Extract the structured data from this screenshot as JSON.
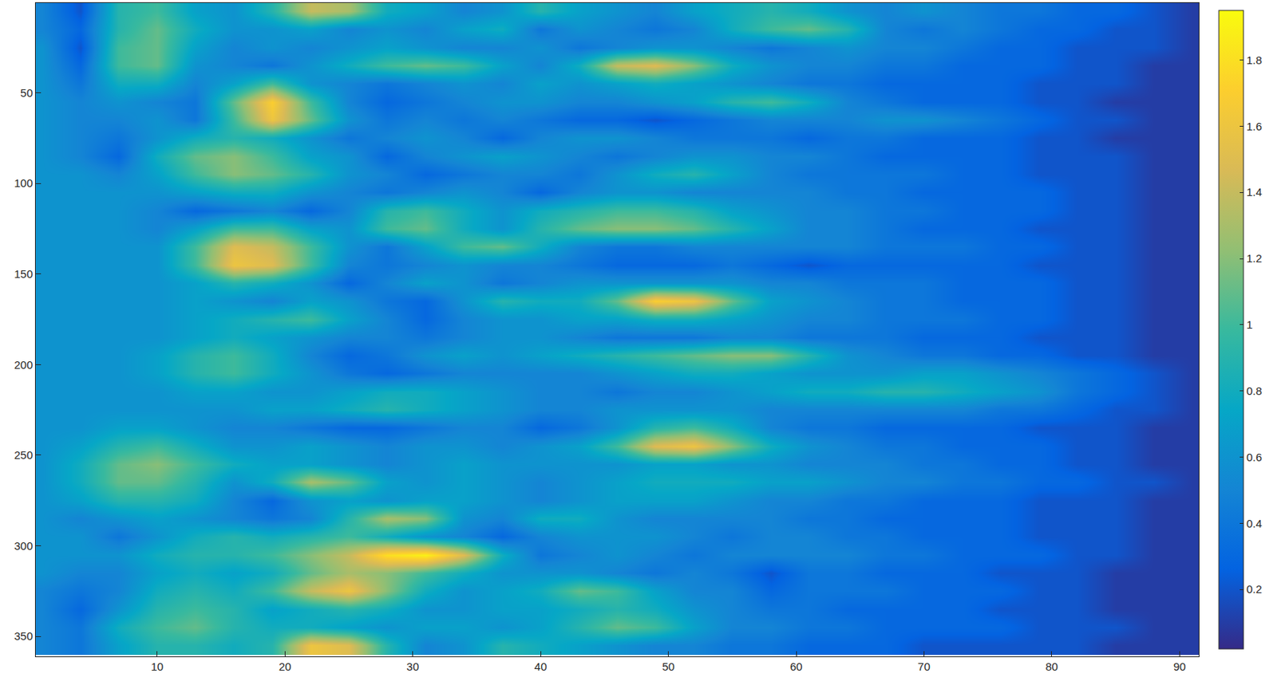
{
  "chart_data": {
    "type": "heatmap",
    "color": "parula",
    "x": [
      1,
      4,
      7,
      10,
      13,
      16,
      19,
      22,
      25,
      28,
      31,
      34,
      37,
      40,
      43,
      46,
      49,
      52,
      55,
      58,
      61,
      64,
      67,
      70,
      73,
      76,
      79,
      82,
      85,
      88,
      91
    ],
    "y": [
      5,
      15,
      25,
      35,
      45,
      55,
      65,
      75,
      85,
      95,
      105,
      115,
      125,
      135,
      145,
      155,
      165,
      175,
      185,
      195,
      205,
      215,
      225,
      235,
      245,
      255,
      265,
      275,
      285,
      295,
      305,
      315,
      325,
      335,
      345,
      355
    ],
    "cells": [
      [
        0.5,
        0.2,
        0.9,
        1.0,
        0.7,
        0.6,
        0.9,
        1.4,
        1.3,
        0.8,
        0.7,
        0.5,
        0.6,
        0.9,
        0.7,
        0.6,
        0.5,
        0.7,
        0.8,
        0.9,
        0.8,
        0.6,
        0.5,
        0.6,
        0.5,
        0.4,
        0.4,
        0.3,
        0.3,
        0.2,
        0.1
      ],
      [
        0.5,
        0.3,
        0.9,
        1.1,
        0.8,
        0.6,
        0.6,
        0.7,
        0.5,
        0.6,
        0.5,
        0.7,
        0.8,
        0.4,
        0.6,
        0.5,
        0.4,
        0.5,
        0.8,
        1.0,
        1.1,
        0.9,
        0.5,
        0.4,
        0.5,
        0.4,
        0.3,
        0.3,
        0.2,
        0.2,
        0.1
      ],
      [
        0.6,
        0.2,
        1.0,
        1.1,
        0.7,
        0.5,
        0.6,
        0.5,
        0.6,
        0.7,
        0.6,
        0.5,
        0.5,
        0.6,
        0.4,
        0.5,
        0.6,
        0.6,
        0.5,
        0.4,
        0.5,
        0.6,
        0.5,
        0.5,
        0.4,
        0.3,
        0.3,
        0.2,
        0.2,
        0.2,
        0.1
      ],
      [
        0.6,
        0.3,
        1.0,
        1.1,
        0.6,
        0.5,
        0.4,
        0.6,
        0.8,
        1.0,
        1.1,
        1.0,
        0.7,
        0.5,
        0.8,
        1.4,
        1.5,
        1.2,
        0.8,
        0.6,
        0.5,
        0.5,
        0.4,
        0.4,
        0.3,
        0.3,
        0.3,
        0.2,
        0.2,
        0.1,
        0.1
      ],
      [
        0.6,
        0.4,
        0.8,
        0.8,
        0.5,
        0.7,
        1.0,
        0.6,
        0.5,
        0.4,
        0.5,
        0.6,
        0.5,
        0.7,
        0.6,
        0.7,
        0.8,
        0.7,
        0.6,
        0.5,
        0.4,
        0.4,
        0.3,
        0.3,
        0.3,
        0.3,
        0.2,
        0.2,
        0.2,
        0.1,
        0.1
      ],
      [
        0.6,
        0.5,
        0.6,
        0.5,
        0.4,
        1.1,
        1.7,
        1.0,
        0.5,
        0.3,
        0.4,
        0.5,
        0.6,
        0.6,
        0.5,
        0.5,
        0.6,
        0.7,
        0.9,
        1.0,
        0.8,
        0.5,
        0.4,
        0.3,
        0.3,
        0.3,
        0.2,
        0.2,
        0.1,
        0.1,
        0.1
      ],
      [
        0.6,
        0.5,
        0.5,
        0.6,
        0.4,
        1.0,
        1.6,
        1.1,
        0.6,
        0.4,
        0.5,
        0.4,
        0.5,
        0.4,
        0.3,
        0.3,
        0.2,
        0.3,
        0.4,
        0.5,
        0.5,
        0.5,
        0.6,
        0.6,
        0.5,
        0.4,
        0.3,
        0.2,
        0.2,
        0.1,
        0.1
      ],
      [
        0.6,
        0.5,
        0.4,
        0.6,
        0.8,
        0.9,
        0.8,
        0.6,
        0.4,
        0.5,
        0.6,
        0.5,
        0.3,
        0.5,
        0.6,
        0.6,
        0.5,
        0.4,
        0.4,
        0.4,
        0.3,
        0.4,
        0.4,
        0.3,
        0.3,
        0.3,
        0.2,
        0.2,
        0.1,
        0.1,
        0.1
      ],
      [
        0.6,
        0.5,
        0.3,
        0.8,
        1.1,
        1.2,
        1.0,
        0.7,
        0.6,
        0.3,
        0.5,
        0.6,
        0.7,
        0.6,
        0.5,
        0.4,
        0.5,
        0.6,
        0.6,
        0.5,
        0.5,
        0.4,
        0.3,
        0.3,
        0.3,
        0.3,
        0.2,
        0.2,
        0.2,
        0.1,
        0.1
      ],
      [
        0.6,
        0.6,
        0.5,
        0.7,
        1.0,
        1.2,
        1.1,
        0.9,
        0.6,
        0.5,
        0.3,
        0.4,
        0.5,
        0.5,
        0.4,
        0.6,
        0.8,
        0.9,
        0.7,
        0.5,
        0.4,
        0.4,
        0.4,
        0.4,
        0.3,
        0.3,
        0.2,
        0.2,
        0.2,
        0.1,
        0.1
      ],
      [
        0.6,
        0.6,
        0.6,
        0.6,
        0.7,
        0.8,
        0.8,
        0.6,
        0.5,
        0.4,
        0.5,
        0.6,
        0.5,
        0.3,
        0.5,
        0.6,
        0.6,
        0.5,
        0.5,
        0.5,
        0.5,
        0.4,
        0.4,
        0.3,
        0.3,
        0.3,
        0.3,
        0.2,
        0.2,
        0.1,
        0.1
      ],
      [
        0.6,
        0.6,
        0.6,
        0.5,
        0.3,
        0.4,
        0.5,
        0.3,
        0.5,
        0.9,
        1.0,
        0.8,
        0.6,
        0.8,
        0.9,
        1.0,
        1.0,
        0.9,
        0.7,
        0.6,
        0.5,
        0.5,
        0.4,
        0.4,
        0.3,
        0.3,
        0.3,
        0.2,
        0.2,
        0.1,
        0.1
      ],
      [
        0.6,
        0.6,
        0.6,
        0.5,
        0.7,
        1.0,
        1.0,
        0.7,
        0.6,
        1.0,
        1.1,
        0.8,
        0.6,
        0.9,
        1.1,
        1.2,
        1.2,
        1.1,
        0.9,
        0.7,
        0.5,
        0.5,
        0.4,
        0.3,
        0.3,
        0.3,
        0.2,
        0.2,
        0.2,
        0.1,
        0.1
      ],
      [
        0.6,
        0.6,
        0.6,
        0.6,
        1.0,
        1.5,
        1.4,
        1.0,
        0.6,
        0.4,
        0.7,
        1.0,
        1.1,
        0.8,
        0.5,
        0.4,
        0.4,
        0.5,
        0.5,
        0.5,
        0.5,
        0.5,
        0.4,
        0.4,
        0.4,
        0.3,
        0.3,
        0.2,
        0.2,
        0.1,
        0.1
      ],
      [
        0.6,
        0.6,
        0.6,
        0.6,
        1.0,
        1.6,
        1.5,
        1.0,
        0.5,
        0.4,
        0.5,
        0.6,
        0.5,
        0.5,
        0.4,
        0.3,
        0.3,
        0.3,
        0.4,
        0.3,
        0.2,
        0.3,
        0.3,
        0.3,
        0.3,
        0.3,
        0.2,
        0.2,
        0.2,
        0.1,
        0.1
      ],
      [
        0.6,
        0.6,
        0.6,
        0.6,
        0.7,
        0.9,
        0.8,
        0.6,
        0.3,
        0.5,
        0.7,
        0.6,
        0.4,
        0.5,
        0.6,
        0.6,
        0.6,
        0.6,
        0.6,
        0.5,
        0.5,
        0.4,
        0.4,
        0.4,
        0.3,
        0.3,
        0.3,
        0.2,
        0.2,
        0.1,
        0.1
      ],
      [
        0.6,
        0.6,
        0.6,
        0.6,
        0.7,
        0.6,
        0.5,
        0.7,
        0.6,
        0.4,
        0.3,
        0.6,
        0.9,
        0.8,
        0.8,
        1.1,
        1.7,
        1.6,
        1.1,
        0.7,
        0.6,
        0.5,
        0.4,
        0.4,
        0.3,
        0.3,
        0.3,
        0.2,
        0.2,
        0.1,
        0.1
      ],
      [
        0.6,
        0.6,
        0.6,
        0.6,
        0.7,
        0.8,
        0.9,
        1.0,
        0.7,
        0.5,
        0.3,
        0.5,
        0.6,
        0.6,
        0.7,
        0.7,
        0.8,
        0.8,
        0.7,
        0.6,
        0.5,
        0.5,
        0.4,
        0.4,
        0.4,
        0.3,
        0.3,
        0.2,
        0.2,
        0.1,
        0.1
      ],
      [
        0.6,
        0.6,
        0.6,
        0.6,
        0.7,
        0.8,
        0.7,
        0.6,
        0.5,
        0.5,
        0.4,
        0.5,
        0.6,
        0.6,
        0.5,
        0.4,
        0.4,
        0.4,
        0.5,
        0.5,
        0.4,
        0.4,
        0.4,
        0.3,
        0.3,
        0.3,
        0.2,
        0.2,
        0.2,
        0.1,
        0.1
      ],
      [
        0.6,
        0.6,
        0.6,
        0.7,
        0.9,
        1.0,
        0.8,
        0.5,
        0.3,
        0.4,
        0.6,
        0.7,
        0.6,
        0.7,
        0.8,
        0.9,
        1.0,
        1.1,
        1.2,
        1.2,
        0.9,
        0.6,
        0.5,
        0.4,
        0.4,
        0.3,
        0.3,
        0.2,
        0.2,
        0.1,
        0.1
      ],
      [
        0.6,
        0.6,
        0.6,
        0.7,
        0.9,
        1.0,
        0.8,
        0.6,
        0.4,
        0.3,
        0.4,
        0.5,
        0.5,
        0.5,
        0.5,
        0.6,
        0.7,
        0.8,
        0.8,
        0.7,
        0.6,
        0.6,
        0.6,
        0.7,
        0.7,
        0.6,
        0.5,
        0.4,
        0.3,
        0.2,
        0.1
      ],
      [
        0.6,
        0.6,
        0.6,
        0.6,
        0.7,
        0.7,
        0.6,
        0.6,
        0.7,
        0.8,
        0.8,
        0.7,
        0.6,
        0.5,
        0.5,
        0.4,
        0.5,
        0.5,
        0.6,
        0.7,
        0.8,
        0.8,
        0.9,
        0.9,
        0.8,
        0.7,
        0.6,
        0.4,
        0.3,
        0.2,
        0.1
      ],
      [
        0.6,
        0.6,
        0.6,
        0.6,
        0.6,
        0.6,
        0.7,
        0.7,
        0.8,
        0.9,
        0.8,
        0.7,
        0.6,
        0.5,
        0.5,
        0.6,
        0.6,
        0.6,
        0.6,
        0.5,
        0.5,
        0.5,
        0.5,
        0.5,
        0.5,
        0.4,
        0.4,
        0.3,
        0.2,
        0.2,
        0.1
      ],
      [
        0.6,
        0.6,
        0.7,
        0.7,
        0.6,
        0.5,
        0.5,
        0.4,
        0.3,
        0.3,
        0.4,
        0.5,
        0.5,
        0.3,
        0.4,
        0.6,
        0.9,
        1.0,
        0.8,
        0.5,
        0.4,
        0.4,
        0.3,
        0.3,
        0.3,
        0.3,
        0.2,
        0.2,
        0.2,
        0.1,
        0.1
      ],
      [
        0.6,
        0.7,
        0.9,
        1.0,
        0.8,
        0.6,
        0.6,
        0.7,
        0.6,
        0.5,
        0.6,
        0.6,
        0.5,
        0.6,
        0.7,
        1.0,
        1.5,
        1.6,
        1.2,
        0.8,
        0.6,
        0.5,
        0.4,
        0.4,
        0.3,
        0.3,
        0.3,
        0.2,
        0.2,
        0.1,
        0.1
      ],
      [
        0.6,
        0.8,
        1.1,
        1.2,
        1.0,
        0.8,
        0.7,
        0.7,
        0.6,
        0.5,
        0.6,
        0.7,
        0.6,
        0.6,
        0.6,
        0.6,
        0.7,
        0.7,
        0.6,
        0.6,
        0.5,
        0.5,
        0.5,
        0.4,
        0.4,
        0.3,
        0.3,
        0.2,
        0.2,
        0.1,
        0.1
      ],
      [
        0.6,
        0.8,
        1.1,
        1.1,
        0.9,
        0.6,
        0.8,
        1.3,
        1.1,
        0.7,
        0.6,
        0.7,
        0.6,
        0.5,
        0.6,
        0.7,
        0.8,
        0.8,
        0.8,
        0.7,
        0.7,
        0.6,
        0.5,
        0.5,
        0.4,
        0.4,
        0.3,
        0.3,
        0.2,
        0.2,
        0.1
      ],
      [
        0.6,
        0.7,
        0.9,
        0.9,
        0.8,
        0.5,
        0.3,
        0.6,
        0.7,
        0.6,
        0.7,
        0.7,
        0.6,
        0.5,
        0.6,
        0.7,
        0.7,
        0.7,
        0.6,
        0.5,
        0.5,
        0.4,
        0.4,
        0.3,
        0.3,
        0.3,
        0.2,
        0.2,
        0.2,
        0.1,
        0.1
      ],
      [
        0.6,
        0.5,
        0.6,
        0.7,
        0.6,
        0.5,
        0.4,
        0.5,
        0.9,
        1.3,
        1.2,
        0.6,
        0.5,
        0.8,
        0.8,
        0.6,
        0.5,
        0.5,
        0.5,
        0.5,
        0.4,
        0.4,
        0.3,
        0.3,
        0.3,
        0.3,
        0.2,
        0.2,
        0.2,
        0.1,
        0.1
      ],
      [
        0.6,
        0.6,
        0.4,
        0.6,
        0.8,
        0.9,
        0.8,
        0.9,
        1.0,
        0.8,
        0.6,
        0.5,
        0.3,
        0.5,
        0.6,
        0.6,
        0.6,
        0.5,
        0.4,
        0.5,
        0.5,
        0.4,
        0.4,
        0.3,
        0.3,
        0.3,
        0.2,
        0.2,
        0.2,
        0.1,
        0.1
      ],
      [
        0.6,
        0.6,
        0.6,
        0.8,
        0.9,
        0.9,
        1.0,
        1.2,
        1.4,
        1.8,
        1.9,
        1.5,
        0.8,
        0.4,
        0.5,
        0.6,
        0.5,
        0.4,
        0.5,
        0.5,
        0.5,
        0.5,
        0.4,
        0.4,
        0.3,
        0.3,
        0.3,
        0.2,
        0.2,
        0.1,
        0.1
      ],
      [
        0.6,
        0.5,
        0.5,
        0.7,
        0.8,
        0.7,
        0.8,
        1.1,
        1.3,
        1.2,
        1.0,
        0.8,
        0.6,
        0.6,
        0.6,
        0.5,
        0.4,
        0.5,
        0.4,
        0.2,
        0.4,
        0.4,
        0.3,
        0.3,
        0.3,
        0.2,
        0.2,
        0.2,
        0.1,
        0.1,
        0.1
      ],
      [
        0.5,
        0.4,
        0.5,
        0.8,
        0.9,
        0.8,
        1.0,
        1.4,
        1.6,
        1.2,
        0.8,
        0.6,
        0.7,
        0.8,
        1.1,
        1.0,
        0.7,
        0.5,
        0.5,
        0.3,
        0.4,
        0.4,
        0.4,
        0.3,
        0.3,
        0.3,
        0.2,
        0.2,
        0.1,
        0.1,
        0.1
      ],
      [
        0.5,
        0.3,
        0.6,
        0.9,
        1.0,
        0.9,
        0.7,
        0.8,
        0.9,
        0.8,
        0.6,
        0.6,
        0.7,
        0.7,
        0.8,
        0.9,
        0.8,
        0.6,
        0.5,
        0.4,
        0.4,
        0.3,
        0.3,
        0.3,
        0.3,
        0.2,
        0.2,
        0.2,
        0.1,
        0.1,
        0.1
      ],
      [
        0.5,
        0.4,
        0.8,
        1.0,
        1.1,
        0.9,
        0.8,
        0.8,
        0.7,
        0.6,
        0.7,
        0.7,
        0.6,
        0.7,
        0.9,
        1.1,
        1.0,
        0.7,
        0.5,
        0.5,
        0.4,
        0.4,
        0.3,
        0.3,
        0.3,
        0.3,
        0.2,
        0.2,
        0.2,
        0.1,
        0.1
      ],
      [
        0.5,
        0.4,
        0.7,
        0.9,
        0.9,
        0.8,
        0.9,
        1.6,
        1.5,
        0.9,
        0.5,
        0.6,
        0.9,
        0.8,
        0.7,
        0.6,
        0.5,
        0.5,
        0.4,
        0.4,
        0.3,
        0.3,
        0.3,
        0.2,
        0.2,
        0.2,
        0.2,
        0.2,
        0.1,
        0.1,
        0.1
      ]
    ],
    "xlim": [
      0.5,
      91.5
    ],
    "ylim": [
      361,
      0.5
    ],
    "xticks": [
      10,
      20,
      30,
      40,
      50,
      60,
      70,
      80,
      90
    ],
    "yticks": [
      50,
      100,
      150,
      200,
      250,
      300,
      350
    ],
    "zlim": [
      0.02,
      1.95
    ],
    "zticks": [
      0.2,
      0.4,
      0.6,
      0.8,
      1,
      1.2,
      1.4,
      1.6,
      1.8
    ]
  }
}
